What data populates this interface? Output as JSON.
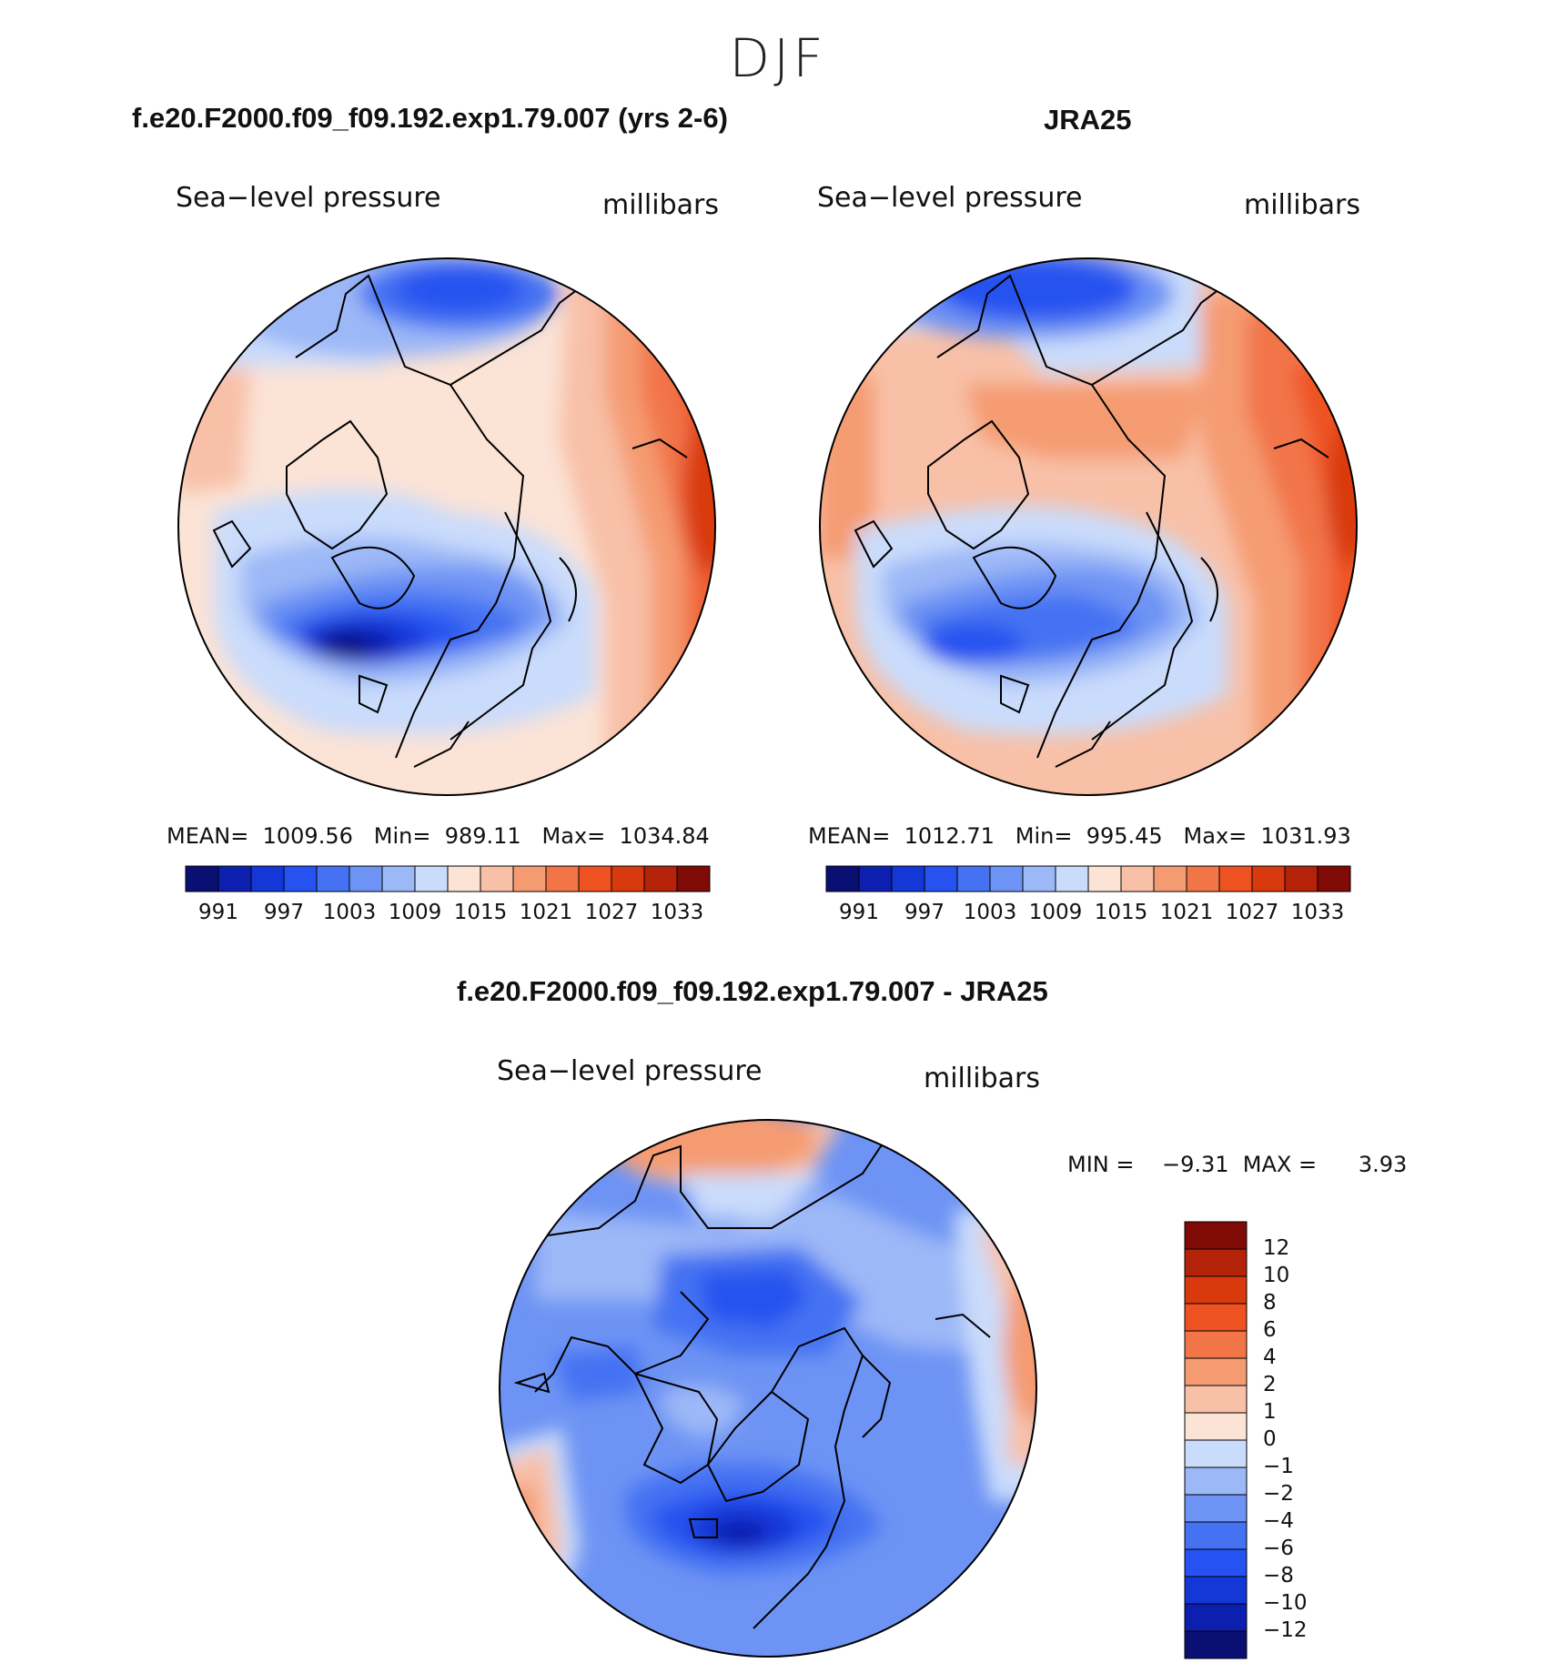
{
  "season": "DJF",
  "panels": [
    {
      "title": "f.e20.F2000.f09_f09.192.exp1.79.007 (yrs 2-6)",
      "variable": "Sea−level pressure",
      "units": "millibars",
      "stats": "MEAN=  1009.56   Min=  989.11   Max=  1034.84",
      "field": "model"
    },
    {
      "title": "JRA25",
      "variable": "Sea−level pressure",
      "units": "millibars",
      "stats": "MEAN=  1012.71   Min=  995.45   Max=  1031.93",
      "field": "obs"
    }
  ],
  "colorbar_abs": {
    "colors": [
      "#0a1073",
      "#0d1fae",
      "#1437d8",
      "#2552f0",
      "#4472f2",
      "#6d93f4",
      "#9cb8f7",
      "#cadcfb",
      "#fbe3d6",
      "#f8c0a7",
      "#f59b72",
      "#f27548",
      "#ee5220",
      "#d93a0d",
      "#b4220a",
      "#7f0a06"
    ],
    "labels": [
      "991",
      "997",
      "1003",
      "1009",
      "1015",
      "1021",
      "1027",
      "1033"
    ]
  },
  "diff_panel": {
    "title": "f.e20.F2000.f09_f09.192.exp1.79.007 - JRA25",
    "variable": "Sea−level pressure",
    "units": "millibars",
    "stats": "MIN =    −9.31  MAX =      3.93"
  },
  "colorbar_diff": {
    "colors_top_to_bottom": [
      "#7f0a06",
      "#b4220a",
      "#d93a0d",
      "#ee5220",
      "#f27548",
      "#f59b72",
      "#f8c0a7",
      "#fbe3d6",
      "#cadcfb",
      "#9cb8f7",
      "#6d93f4",
      "#4472f2",
      "#2552f0",
      "#1437d8",
      "#0d1fae",
      "#0a1073"
    ],
    "labels_top_to_bottom": [
      "12",
      "10",
      "8",
      "6",
      "4",
      "2",
      "1",
      "0",
      "−1",
      "−2",
      "−4",
      "−6",
      "−8",
      "−10",
      "−12"
    ]
  }
}
